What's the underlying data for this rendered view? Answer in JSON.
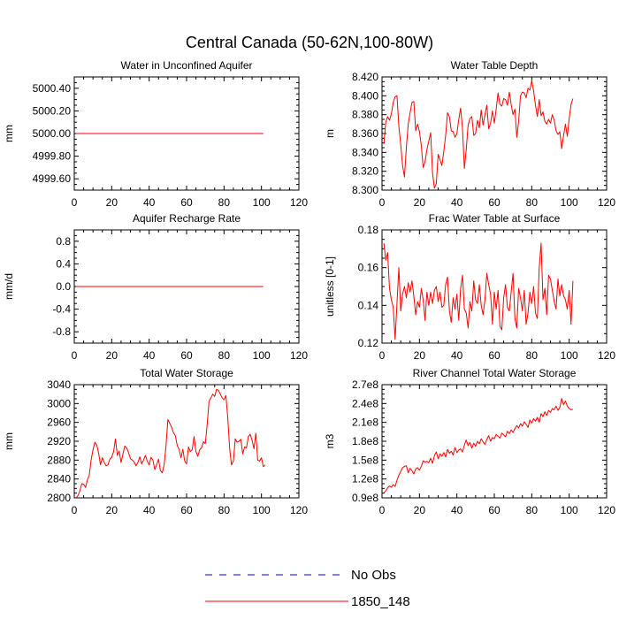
{
  "figure": {
    "title": "Central Canada (50-62N,100-80W)",
    "legend": [
      {
        "label": "No Obs",
        "color": "#0000ff",
        "dashed": true
      },
      {
        "label": "1850_148",
        "color": "#ff0000",
        "dashed": false
      }
    ]
  },
  "colors": {
    "series": "#ff0000",
    "obs": "#0000ff",
    "axis": "#000000"
  },
  "chart_data": [
    {
      "type": "line",
      "title": "Water in Unconfined Aquifer",
      "xlabel": "",
      "ylabel": "mm",
      "xlim": [
        0,
        120
      ],
      "ylim": [
        4999.5,
        5000.5
      ],
      "xticks": [
        0,
        20,
        40,
        60,
        80,
        100,
        120
      ],
      "yticks": [
        4999.6,
        4999.8,
        5000.0,
        5000.2,
        5000.4
      ],
      "yticklabels": [
        "4999.60",
        "4999.80",
        "5000.00",
        "5000.20",
        "5000.40"
      ],
      "series": [
        {
          "values": [
            5000,
            5000
          ],
          "x": [
            1,
            101
          ]
        }
      ]
    },
    {
      "type": "line",
      "title": "Water Table Depth",
      "xlabel": "",
      "ylabel": "m",
      "xlim": [
        0,
        120
      ],
      "ylim": [
        8.3,
        8.42
      ],
      "xticks": [
        0,
        20,
        40,
        60,
        80,
        100,
        120
      ],
      "yticks": [
        8.3,
        8.32,
        8.34,
        8.36,
        8.38,
        8.4,
        8.42
      ],
      "yticklabels": [
        "8.300",
        "8.320",
        "8.340",
        "8.360",
        "8.380",
        "8.400",
        "8.420"
      ],
      "series": [
        {
          "values": [
            8.349,
            8.372,
            8.378,
            8.374,
            8.381,
            8.393,
            8.399,
            8.4,
            8.368,
            8.348,
            8.326,
            8.314,
            8.345,
            8.37,
            8.382,
            8.393,
            8.394,
            8.363,
            8.37,
            8.362,
            8.347,
            8.324,
            8.33,
            8.343,
            8.352,
            8.361,
            8.318,
            8.302,
            8.307,
            8.338,
            8.332,
            8.326,
            8.341,
            8.358,
            8.382,
            8.378,
            8.363,
            8.362,
            8.356,
            8.36,
            8.375,
            8.387,
            8.365,
            8.323,
            8.343,
            8.369,
            8.376,
            8.378,
            8.358,
            8.36,
            8.374,
            8.366,
            8.385,
            8.369,
            8.38,
            8.39,
            8.365,
            8.371,
            8.384,
            8.371,
            8.386,
            8.403,
            8.391,
            8.389,
            8.397,
            8.396,
            8.39,
            8.404,
            8.391,
            8.38,
            8.386,
            8.356,
            8.373,
            8.4,
            8.404,
            8.403,
            8.398,
            8.408,
            8.406,
            8.416,
            8.405,
            8.39,
            8.378,
            8.396,
            8.379,
            8.383,
            8.373,
            8.37,
            8.375,
            8.371,
            8.38,
            8.374,
            8.363,
            8.359,
            8.362,
            8.344,
            8.358,
            8.37,
            8.357,
            8.376,
            8.391,
            8.397
          ]
        }
      ]
    },
    {
      "type": "line",
      "title": "Aquifer Recharge Rate",
      "xlabel": "",
      "ylabel": "mm/d",
      "xlim": [
        0,
        120
      ],
      "ylim": [
        -1,
        1
      ],
      "xticks": [
        0,
        20,
        40,
        60,
        80,
        100,
        120
      ],
      "yticks": [
        -0.8,
        -0.4,
        0,
        0.4,
        0.8
      ],
      "yticklabels": [
        "-0.8",
        "-0.4",
        "0.0",
        "0.4",
        "0.8"
      ],
      "series": [
        {
          "values": [
            0,
            0
          ],
          "x": [
            1,
            101
          ]
        }
      ]
    },
    {
      "type": "line",
      "title": "Frac Water Table at Surface",
      "xlabel": "",
      "ylabel": "unitless [0-1]",
      "xlim": [
        0,
        120
      ],
      "ylim": [
        0.12,
        0.18
      ],
      "xticks": [
        0,
        20,
        40,
        60,
        80,
        100,
        120
      ],
      "yticks": [
        0.12,
        0.14,
        0.16,
        0.18
      ],
      "yticklabels": [
        "0.12",
        "0.14",
        "0.16",
        "0.18"
      ],
      "series": [
        {
          "values": [
            0.173,
            0.164,
            0.168,
            0.149,
            0.143,
            0.139,
            0.122,
            0.141,
            0.16,
            0.137,
            0.146,
            0.15,
            0.144,
            0.152,
            0.147,
            0.153,
            0.145,
            0.135,
            0.142,
            0.139,
            0.149,
            0.143,
            0.132,
            0.147,
            0.14,
            0.147,
            0.141,
            0.148,
            0.15,
            0.142,
            0.147,
            0.139,
            0.14,
            0.151,
            0.155,
            0.137,
            0.131,
            0.144,
            0.138,
            0.146,
            0.132,
            0.149,
            0.156,
            0.138,
            0.136,
            0.128,
            0.142,
            0.137,
            0.153,
            0.143,
            0.141,
            0.151,
            0.14,
            0.135,
            0.143,
            0.157,
            0.151,
            0.146,
            0.13,
            0.147,
            0.138,
            0.148,
            0.129,
            0.127,
            0.144,
            0.151,
            0.139,
            0.137,
            0.147,
            0.157,
            0.133,
            0.128,
            0.149,
            0.144,
            0.137,
            0.148,
            0.13,
            0.136,
            0.147,
            0.141,
            0.15,
            0.136,
            0.133,
            0.16,
            0.173,
            0.143,
            0.149,
            0.135,
            0.156,
            0.154,
            0.148,
            0.142,
            0.138,
            0.154,
            0.145,
            0.151,
            0.145,
            0.143,
            0.138,
            0.148,
            0.13,
            0.153
          ]
        }
      ]
    },
    {
      "type": "line",
      "title": "Total Water Storage",
      "xlabel": "",
      "ylabel": "mm",
      "xlim": [
        0,
        120
      ],
      "ylim": [
        2800,
        3040
      ],
      "xticks": [
        0,
        20,
        40,
        60,
        80,
        100,
        120
      ],
      "yticks": [
        2800,
        2840,
        2880,
        2920,
        2960,
        3000,
        3040
      ],
      "yticklabels": [
        "2800",
        "2840",
        "2880",
        "2920",
        "2960",
        "3000",
        "3040"
      ],
      "series": [
        {
          "values": [
            2800,
            2805,
            2815,
            2830,
            2829,
            2822,
            2838,
            2848,
            2880,
            2902,
            2918,
            2912,
            2895,
            2870,
            2885,
            2875,
            2868,
            2870,
            2882,
            2886,
            2898,
            2925,
            2890,
            2899,
            2875,
            2893,
            2910,
            2906,
            2896,
            2883,
            2880,
            2876,
            2868,
            2875,
            2887,
            2872,
            2880,
            2890,
            2878,
            2870,
            2886,
            2880,
            2860,
            2870,
            2882,
            2858,
            2853,
            2870,
            2910,
            2966,
            2958,
            2950,
            2938,
            2932,
            2911,
            2903,
            2885,
            2903,
            2878,
            2872,
            2908,
            2898,
            2902,
            2930,
            2898,
            2888,
            2902,
            2906,
            2919,
            2915,
            2955,
            3005,
            3012,
            3020,
            3015,
            3030,
            3028,
            3020,
            3012,
            3008,
            3017,
            2970,
            2905,
            2870,
            2878,
            2925,
            2918,
            2920,
            2924,
            2893,
            2908,
            2906,
            2930,
            2935,
            2922,
            2904,
            2937,
            2880,
            2878,
            2885,
            2866,
            2870
          ]
        }
      ]
    },
    {
      "type": "line",
      "title": "River Channel Total Water Storage",
      "xlabel": "",
      "ylabel": "m3",
      "xlim": [
        0,
        120
      ],
      "ylim": [
        90000000,
        270000000
      ],
      "xticks": [
        0,
        20,
        40,
        60,
        80,
        100,
        120
      ],
      "yticks": [
        90000000,
        120000000,
        150000000,
        180000000,
        210000000,
        240000000,
        270000000
      ],
      "yticklabels": [
        "0.9e8",
        "1.2e8",
        "1.5e8",
        "1.8e8",
        "2.1e8",
        "2.4e8",
        "2.7e8"
      ],
      "series": [
        {
          "values": [
            98000000,
            101000000,
            106000000,
            109000000,
            107000000,
            111000000,
            108000000,
            118000000,
            126000000,
            132000000,
            138000000,
            140000000,
            141000000,
            130000000,
            137000000,
            133000000,
            128000000,
            136000000,
            138000000,
            134000000,
            140000000,
            149000000,
            147000000,
            148000000,
            146000000,
            153000000,
            145000000,
            157000000,
            163000000,
            152000000,
            160000000,
            156000000,
            162000000,
            155000000,
            167000000,
            161000000,
            164000000,
            158000000,
            170000000,
            162000000,
            166000000,
            168000000,
            163000000,
            174000000,
            182000000,
            173000000,
            178000000,
            169000000,
            177000000,
            172000000,
            180000000,
            176000000,
            184000000,
            179000000,
            175000000,
            183000000,
            189000000,
            180000000,
            186000000,
            184000000,
            191000000,
            188000000,
            185000000,
            193000000,
            190000000,
            187000000,
            196000000,
            192000000,
            198000000,
            194000000,
            200000000,
            205000000,
            201000000,
            208000000,
            204000000,
            211000000,
            207000000,
            202000000,
            214000000,
            209000000,
            216000000,
            212000000,
            218000000,
            210000000,
            224000000,
            219000000,
            227000000,
            221000000,
            229000000,
            226000000,
            232000000,
            230000000,
            236000000,
            229000000,
            234000000,
            248000000,
            238000000,
            244000000,
            236000000,
            232000000,
            230000000,
            231000000
          ]
        }
      ]
    }
  ]
}
